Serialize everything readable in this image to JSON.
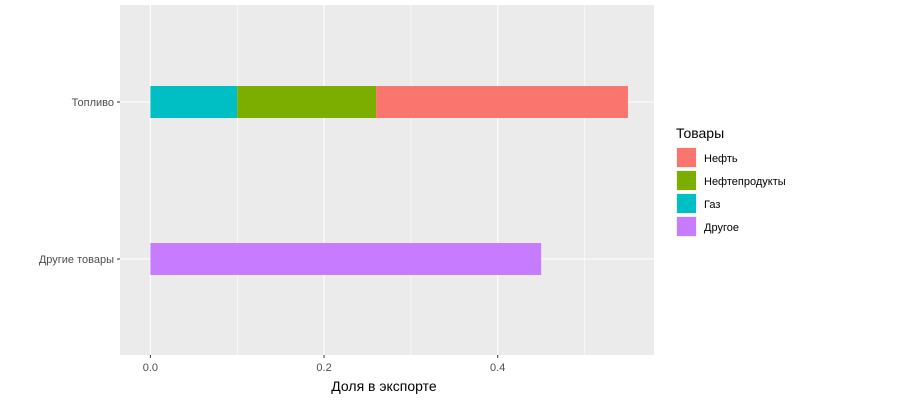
{
  "chart_data": {
    "type": "bar",
    "orientation": "horizontal",
    "stacked": true,
    "categories": [
      "Топливо",
      "Другие товары"
    ],
    "series": [
      {
        "name": "Нефть",
        "values": [
          0.29,
          0
        ],
        "color": "#F8766D"
      },
      {
        "name": "Нефтепродукты",
        "values": [
          0.16,
          0
        ],
        "color": "#7CAE00"
      },
      {
        "name": "Газ",
        "values": [
          0.1,
          0
        ],
        "color": "#00BFC4"
      },
      {
        "name": "Другое",
        "values": [
          0,
          0.45
        ],
        "color": "#C77CFF"
      }
    ],
    "stack_order_from_zero": [
      "Газ",
      "Нефтепродукты",
      "Нефть",
      "Другое"
    ],
    "xlabel": "Доля в экспорте",
    "ylabel": "",
    "xlim": [
      -0.035,
      0.58
    ],
    "x_ticks": [
      0.0,
      0.2,
      0.4
    ],
    "x_tick_labels": [
      "0.0",
      "0.2",
      "0.4"
    ],
    "legend": {
      "title": "Товары",
      "position": "right",
      "entries": [
        "Нефть",
        "Нефтепродукты",
        "Газ",
        "Другое"
      ]
    },
    "grid": true,
    "panel_background": "#EBEBEB",
    "grid_color": "#FFFFFF"
  }
}
